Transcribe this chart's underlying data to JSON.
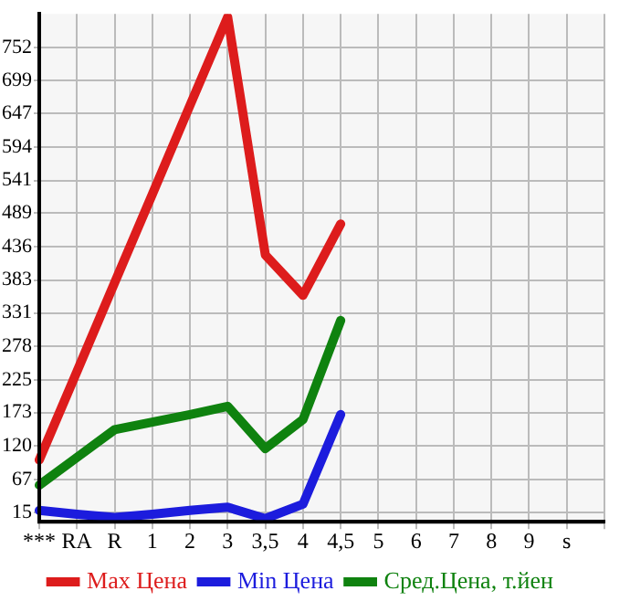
{
  "chart_data": {
    "type": "line",
    "categories": [
      "***",
      "RA",
      "R",
      "1",
      "2",
      "3",
      "3,5",
      "4",
      "4,5",
      "5",
      "6",
      "7",
      "8",
      "9",
      "s",
      null
    ],
    "series": [
      {
        "name": "Max Цена",
        "color": "#dd1c1c",
        "values": [
          98,
          238,
          379,
          519,
          660,
          800,
          423,
          359,
          472,
          null,
          null,
          null,
          null,
          null,
          null,
          null
        ]
      },
      {
        "name": "Min Цена",
        "color": "#1c1cdd",
        "values": [
          18,
          12,
          7,
          12,
          18,
          23,
          5,
          28,
          170,
          null,
          null,
          null,
          null,
          null,
          null,
          null
        ]
      },
      {
        "name": "Сред.Цена, т.йен",
        "color": "#0f820f",
        "values": [
          58,
          102,
          146,
          158,
          170,
          183,
          116,
          162,
          319,
          null,
          null,
          null,
          null,
          null,
          null,
          null
        ]
      }
    ],
    "ylim": [
      0,
      805
    ],
    "yticks": [
      15,
      67,
      120,
      173,
      225,
      278,
      331,
      383,
      436,
      489,
      541,
      594,
      647,
      699,
      752
    ],
    "grid": true,
    "legend": "bottom",
    "marker": "none",
    "line_style": "solid"
  }
}
